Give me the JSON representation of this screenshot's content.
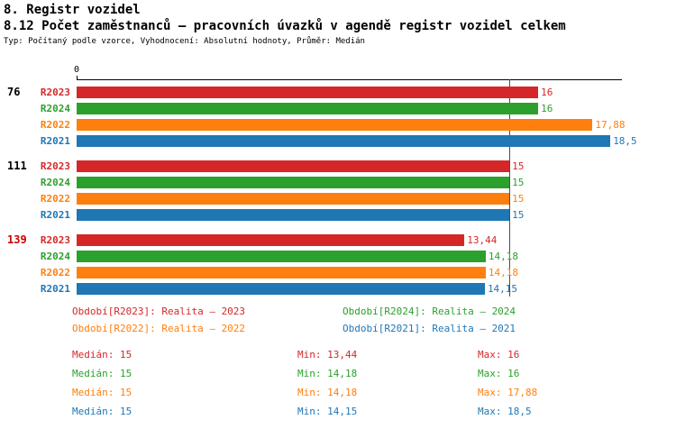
{
  "header": {
    "section": "8. Registr vozidel",
    "title": "8.12 Počet zaměstnanců – pracovních úvazků v agendě registr vozidel celkem",
    "subtitle": "Typ: Počítaný podle vzorce, Vyhodnocení: Absolutní hodnoty, Průměr: Medián"
  },
  "colors": {
    "R2023": "#d62728",
    "R2024": "#2ca02c",
    "R2022": "#ff7f0e",
    "R2021": "#1f77b4",
    "highlight_group": "#cc0000",
    "text": "#000000",
    "axis": "#000000",
    "median_line": "#4d4d4d"
  },
  "chart_data": {
    "type": "bar",
    "orientation": "horizontal",
    "title": "8.12 Počet zaměstnanců – pracovních úvazků v agendě registr vozidel celkem",
    "xlabel": "",
    "ylabel": "",
    "xlim": [
      0,
      18.9
    ],
    "axis_origin_label": "0",
    "median_reference_line": 15,
    "series_order": [
      "R2023",
      "R2024",
      "R2022",
      "R2021"
    ],
    "groups": [
      {
        "label": "76",
        "highlighted": false,
        "bars": [
          {
            "series": "R2023",
            "value": 16,
            "display": "16"
          },
          {
            "series": "R2024",
            "value": 16,
            "display": "16"
          },
          {
            "series": "R2022",
            "value": 17.88,
            "display": "17,88"
          },
          {
            "series": "R2021",
            "value": 18.5,
            "display": "18,5"
          }
        ]
      },
      {
        "label": "111",
        "highlighted": false,
        "bars": [
          {
            "series": "R2023",
            "value": 15,
            "display": "15"
          },
          {
            "series": "R2024",
            "value": 15,
            "display": "15"
          },
          {
            "series": "R2022",
            "value": 15,
            "display": "15"
          },
          {
            "series": "R2021",
            "value": 15,
            "display": "15"
          }
        ]
      },
      {
        "label": "139",
        "highlighted": true,
        "bars": [
          {
            "series": "R2023",
            "value": 13.44,
            "display": "13,44"
          },
          {
            "series": "R2024",
            "value": 14.18,
            "display": "14,18"
          },
          {
            "series": "R2022",
            "value": 14.18,
            "display": "14,18"
          },
          {
            "series": "R2021",
            "value": 14.15,
            "display": "14,15"
          }
        ]
      }
    ]
  },
  "legend": [
    {
      "series": "R2023",
      "label": "Období[R2023]",
      "value": "Realita – 2023"
    },
    {
      "series": "R2024",
      "label": "Období[R2024]",
      "value": "Realita – 2024"
    },
    {
      "series": "R2022",
      "label": "Období[R2022]",
      "value": "Realita – 2022"
    },
    {
      "series": "R2021",
      "label": "Období[R2021]",
      "value": "Realita – 2021"
    }
  ],
  "stats": {
    "labels": {
      "median": "Medián",
      "min": "Min",
      "max": "Max"
    },
    "rows": [
      {
        "series": "R2023",
        "median": "15",
        "min": "13,44",
        "max": "16"
      },
      {
        "series": "R2024",
        "median": "15",
        "min": "14,18",
        "max": "16"
      },
      {
        "series": "R2022",
        "median": "15",
        "min": "14,18",
        "max": "17,88"
      },
      {
        "series": "R2021",
        "median": "15",
        "min": "14,15",
        "max": "18,5"
      }
    ]
  }
}
